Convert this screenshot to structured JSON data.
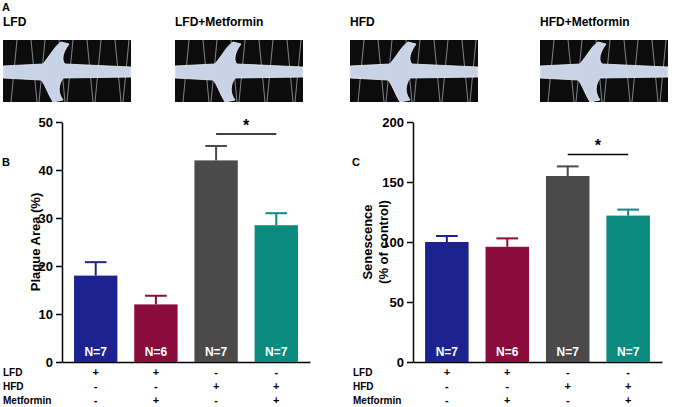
{
  "panel_a": {
    "title": "A",
    "images": [
      "LFD",
      "LFD+Metformin",
      "HFD",
      "HFD+Metformin"
    ]
  },
  "chart_data": [
    {
      "type": "bar",
      "title": "B",
      "y_label": [
        "Plaque Area (%)"
      ],
      "categories": [
        null,
        null,
        null,
        null
      ],
      "values": [
        18,
        12,
        42,
        28.5
      ],
      "errors": [
        2.8,
        1.8,
        3,
        2.5
      ],
      "colors": [
        "#1c2390",
        "#8a0c3d",
        "#4a4a4a",
        "#0b8a80"
      ],
      "bar_labels": [
        "N=7",
        "N=6",
        "N=7",
        "N=7"
      ],
      "ylim": [
        0,
        50
      ],
      "yticks": [
        0,
        10,
        20,
        30,
        40,
        50
      ],
      "annotations": [
        {
          "text": "*",
          "from": 2,
          "to": 3
        }
      ],
      "conditions": [
        {
          "name": "LFD",
          "values": [
            "+",
            "+",
            "-",
            "-"
          ]
        },
        {
          "name": "HFD",
          "values": [
            "-",
            "-",
            "+",
            "+"
          ]
        },
        {
          "name": "Metformin",
          "values": [
            "-",
            "+",
            "-",
            "+"
          ]
        }
      ]
    },
    {
      "type": "bar",
      "title": "C",
      "y_label": [
        "Senescence",
        "(% of control)"
      ],
      "categories": [
        null,
        null,
        null,
        null
      ],
      "values": [
        100,
        96,
        155,
        122
      ],
      "errors": [
        5,
        7,
        8,
        5
      ],
      "colors": [
        "#1c2390",
        "#8a0c3d",
        "#4a4a4a",
        "#0b8a80"
      ],
      "bar_labels": [
        "N=7",
        "N=6",
        "N=7",
        "N=7"
      ],
      "ylim": [
        0,
        200
      ],
      "yticks": [
        0,
        50,
        100,
        150,
        200
      ],
      "annotations": [
        {
          "text": "*",
          "from": 2,
          "to": 3
        }
      ],
      "conditions": [
        {
          "name": "LFD",
          "values": [
            "+",
            "+",
            "-",
            "-"
          ]
        },
        {
          "name": "HFD",
          "values": [
            "-",
            "-",
            "+",
            "+"
          ]
        },
        {
          "name": "Metformin",
          "values": [
            "-",
            "+",
            "-",
            "+"
          ]
        }
      ]
    }
  ]
}
